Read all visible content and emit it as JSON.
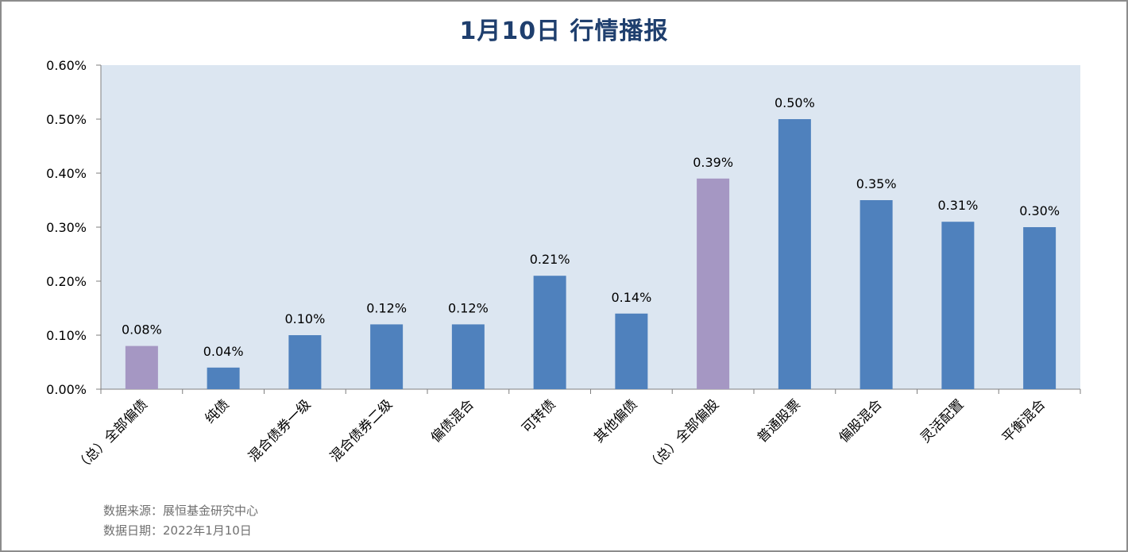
{
  "title": "1月10日  行情播报",
  "footer": {
    "source": "数据来源：展恒基金研究中心",
    "date": "数据日期：2022年1月10日"
  },
  "colors": {
    "plot_bg": "#dce6f1",
    "bar_blue": "#4f81bd",
    "bar_purple": "#a597c3",
    "title": "#1f3f6e"
  },
  "chart_data": {
    "type": "bar",
    "title": "1月10日  行情播报",
    "xlabel": "",
    "ylabel": "",
    "ylim": [
      0,
      0.6
    ],
    "yticks": [
      "0.00%",
      "0.10%",
      "0.20%",
      "0.30%",
      "0.40%",
      "0.50%",
      "0.60%"
    ],
    "grid": false,
    "categories": [
      "（总）全部偏债",
      "纯债",
      "混合债券一级",
      "混合债券二级",
      "偏债混合",
      "可转债",
      "其他偏债",
      "（总）全部偏股",
      "普通股票",
      "偏股混合",
      "灵活配置",
      "平衡混合"
    ],
    "values": [
      0.08,
      0.04,
      0.1,
      0.12,
      0.12,
      0.21,
      0.14,
      0.39,
      0.5,
      0.35,
      0.31,
      0.3
    ],
    "value_labels": [
      "0.08%",
      "0.04%",
      "0.10%",
      "0.12%",
      "0.12%",
      "0.21%",
      "0.14%",
      "0.39%",
      "0.50%",
      "0.35%",
      "0.31%",
      "0.30%"
    ],
    "bar_colors": [
      "purple",
      "blue",
      "blue",
      "blue",
      "blue",
      "blue",
      "blue",
      "purple",
      "blue",
      "blue",
      "blue",
      "blue"
    ]
  }
}
